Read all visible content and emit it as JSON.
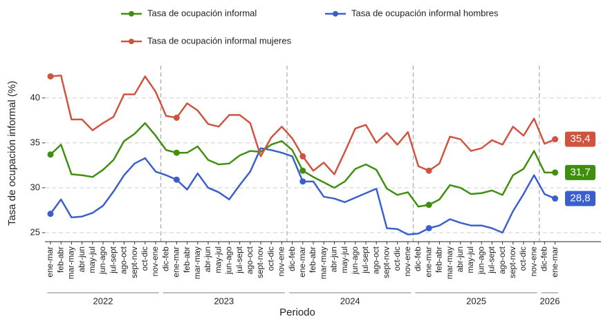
{
  "chart_data": {
    "type": "line",
    "y_label": "Tasa de ocupación informal (%)",
    "x_label": "Periodo",
    "categories": [
      "ene-mar",
      "feb-abr",
      "mar-may",
      "abr-jun",
      "may-jul",
      "jun-ago",
      "jul-sept",
      "ago-oct",
      "sept-nov",
      "oct-dic",
      "nov-ene",
      "dic-feb",
      "ene-mar",
      "feb-abr",
      "mar-may",
      "abr-jun",
      "may-jul",
      "jun-ago",
      "jul-sept",
      "ago-oct",
      "sept-nov",
      "oct-dic",
      "nov-ene",
      "dic-feb",
      "ene-mar",
      "feb-abr",
      "mar-may",
      "abr-jun",
      "may-jul",
      "jun-ago",
      "jul-sept",
      "ago-oct",
      "sept-nov",
      "oct-dic",
      "nov-ene",
      "dic-feb",
      "ene-mar",
      "feb-abr",
      "mar-may",
      "abr-jun",
      "may-jul",
      "jun-ago",
      "jul-sept",
      "ago-oct",
      "sept-nov",
      "oct-dic",
      "nov-ene",
      "dic-feb",
      "ene-mar"
    ],
    "year_groups": [
      {
        "label": "2022",
        "count": 11
      },
      {
        "label": "2023",
        "count": 12
      },
      {
        "label": "2024",
        "count": 12
      },
      {
        "label": "2025",
        "count": 12
      },
      {
        "label": "2026",
        "count": 2
      }
    ],
    "series": [
      {
        "name": "Tasa de ocupación informal",
        "color": "#3f8f0f",
        "values": [
          33.7,
          34.8,
          31.5,
          31.4,
          31.2,
          32.0,
          33.1,
          35.2,
          36.0,
          37.2,
          35.8,
          34.2,
          33.9,
          33.9,
          34.6,
          33.1,
          32.6,
          32.7,
          33.6,
          34.1,
          34.0,
          34.8,
          35.2,
          34.2,
          31.9,
          31.2,
          30.6,
          30.0,
          30.7,
          32.1,
          32.6,
          32.0,
          29.9,
          29.2,
          29.5,
          27.9,
          28.1,
          28.7,
          30.3,
          30.0,
          29.3,
          29.4,
          29.7,
          29.2,
          31.4,
          32.1,
          34.1,
          31.7,
          31.7
        ],
        "value_labels": [
          null,
          null,
          null,
          null,
          null,
          null,
          null,
          null,
          null,
          null,
          null,
          null,
          null,
          null,
          null,
          null,
          null,
          null,
          null,
          null,
          null,
          null,
          null,
          null,
          null,
          null,
          null,
          null,
          null,
          null,
          null,
          null,
          null,
          null,
          null,
          null,
          null,
          null,
          null,
          null,
          null,
          null,
          null,
          null,
          null,
          null,
          null,
          null,
          "31,7"
        ]
      },
      {
        "name": "Tasa de ocupación informal hombres",
        "color": "#3a5fcd",
        "values": [
          27.1,
          28.7,
          26.7,
          26.8,
          27.2,
          28.0,
          29.6,
          31.4,
          32.7,
          33.3,
          31.8,
          31.4,
          30.9,
          29.8,
          31.6,
          30.0,
          29.5,
          28.7,
          30.3,
          31.8,
          34.4,
          34.2,
          33.9,
          33.5,
          30.7,
          30.7,
          29.0,
          28.8,
          28.4,
          28.9,
          29.4,
          29.9,
          25.5,
          25.4,
          24.8,
          24.9,
          25.5,
          25.8,
          26.5,
          26.1,
          25.8,
          25.8,
          25.5,
          25.0,
          27.4,
          29.3,
          31.4,
          29.3,
          28.8
        ],
        "value_labels": [
          null,
          null,
          null,
          null,
          null,
          null,
          null,
          null,
          null,
          null,
          null,
          null,
          null,
          null,
          null,
          null,
          null,
          null,
          null,
          null,
          null,
          null,
          null,
          null,
          null,
          null,
          null,
          null,
          null,
          null,
          null,
          null,
          null,
          null,
          null,
          null,
          null,
          null,
          null,
          null,
          null,
          null,
          null,
          null,
          null,
          null,
          null,
          null,
          "28,8"
        ]
      },
      {
        "name": "Tasa de ocupación informal mujeres",
        "color": "#d0533e",
        "values": [
          42.4,
          42.5,
          37.6,
          37.6,
          36.4,
          37.2,
          37.9,
          40.4,
          40.4,
          42.4,
          40.7,
          38.0,
          37.8,
          39.4,
          38.6,
          37.1,
          36.8,
          38.1,
          38.1,
          37.2,
          33.5,
          35.6,
          36.8,
          35.5,
          33.5,
          31.9,
          32.8,
          31.5,
          34.0,
          36.6,
          37.0,
          35.0,
          36.1,
          34.8,
          36.2,
          32.4,
          31.9,
          32.7,
          35.7,
          35.4,
          34.1,
          34.4,
          35.3,
          34.8,
          36.8,
          35.8,
          37.7,
          34.9,
          35.4
        ],
        "value_labels": [
          null,
          null,
          null,
          null,
          null,
          null,
          null,
          null,
          null,
          null,
          null,
          null,
          null,
          null,
          null,
          null,
          null,
          null,
          null,
          null,
          null,
          null,
          null,
          null,
          null,
          null,
          null,
          null,
          null,
          null,
          null,
          null,
          null,
          null,
          null,
          null,
          null,
          null,
          null,
          null,
          null,
          null,
          null,
          null,
          null,
          null,
          null,
          null,
          "35,4"
        ]
      }
    ],
    "ylim": [
      24,
      43.6
    ],
    "yticks": [
      25,
      30,
      35,
      40
    ],
    "grid": true
  }
}
